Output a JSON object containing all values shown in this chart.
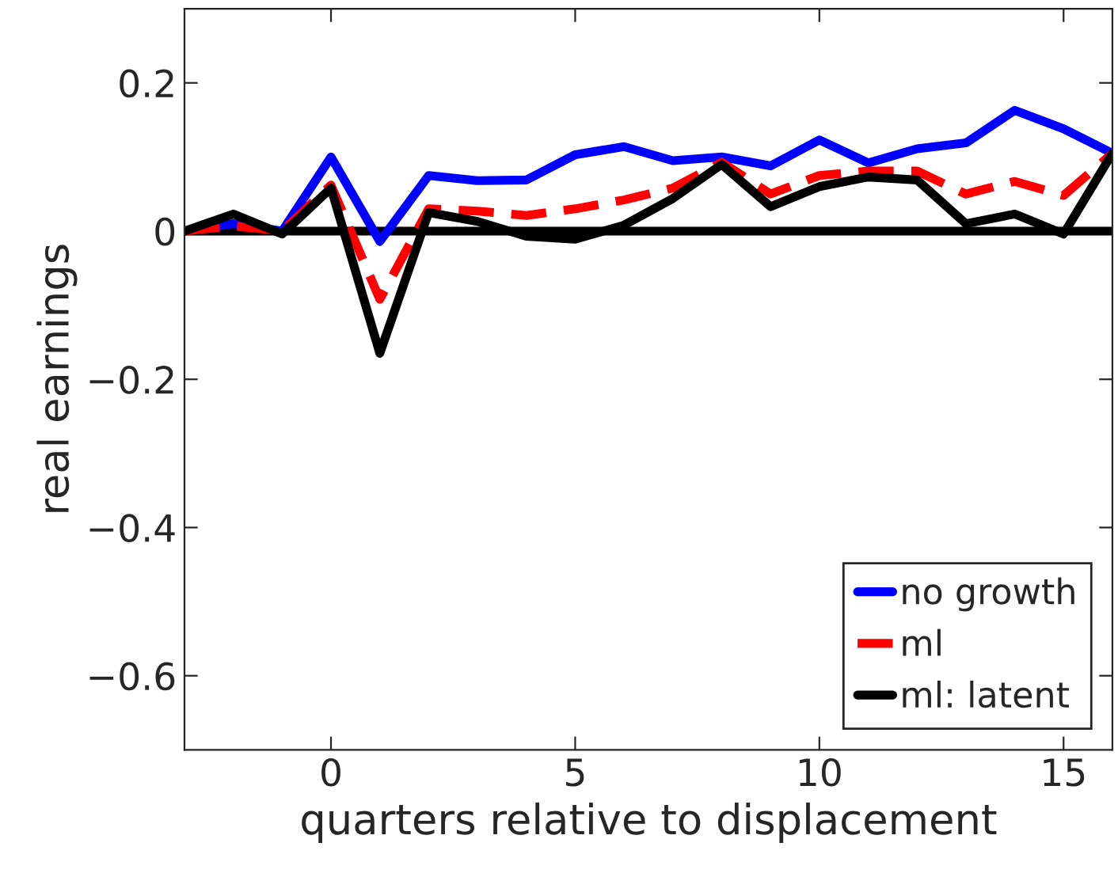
{
  "chart_data": {
    "type": "line",
    "xlabel": "quarters relative to displacement",
    "ylabel": "real earnings",
    "x": [
      -3,
      -2,
      -1,
      0,
      1,
      2,
      3,
      4,
      5,
      6,
      7,
      8,
      9,
      10,
      11,
      12,
      13,
      14,
      15,
      16
    ],
    "series": [
      {
        "name": "no growth",
        "color": "#0000ff",
        "line_style": "solid",
        "values": [
          0,
          0.01,
          0,
          0.1,
          -0.014,
          0.075,
          0.068,
          0.069,
          0.103,
          0.114,
          0.095,
          0.1,
          0.088,
          0.123,
          0.092,
          0.111,
          0.119,
          0.163,
          0.138,
          0.105
        ]
      },
      {
        "name": "ml",
        "color": "#ff0000",
        "line_style": "dashed",
        "values": [
          0,
          0.007,
          0,
          0.062,
          -0.092,
          0.03,
          0.027,
          0.021,
          0.03,
          0.042,
          0.058,
          0.093,
          0.05,
          0.075,
          0.081,
          0.081,
          0.05,
          0.067,
          0.048,
          0.105
        ]
      },
      {
        "name": "ml: latent",
        "color": "#000000",
        "line_style": "solid",
        "values": [
          0,
          0.023,
          -0.004,
          0.058,
          -0.165,
          0.025,
          0.013,
          -0.007,
          -0.011,
          0.008,
          0.044,
          0.09,
          0.033,
          0.06,
          0.073,
          0.069,
          0.01,
          0.023,
          -0.004,
          0.105
        ]
      }
    ],
    "xlim": [
      -3,
      16
    ],
    "ylim": [
      -0.7,
      0.3
    ],
    "xticks": [
      0,
      5,
      10,
      15
    ],
    "yticks": [
      {
        "value": -0.6,
        "label": "−0.6"
      },
      {
        "value": -0.4,
        "label": "−0.4"
      },
      {
        "value": -0.2,
        "label": "−0.2"
      },
      0,
      0.2
    ],
    "ref_lines": [
      {
        "axis": "y",
        "value": 0,
        "color": "#000000",
        "line_style": "solid"
      }
    ],
    "legend": "bottom right",
    "grid": false,
    "marker": "none"
  }
}
